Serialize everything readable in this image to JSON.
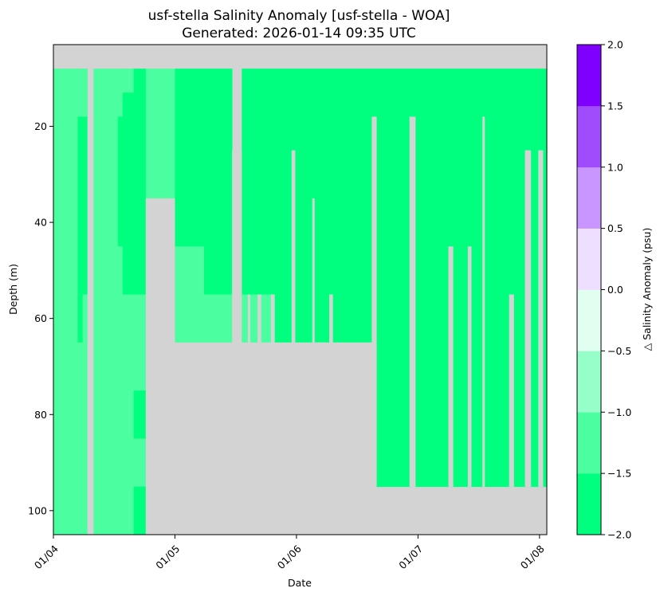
{
  "chart_data": {
    "type": "heatmap",
    "title": "usf-stella Salinity Anomaly [usf-stella - WOA]",
    "subtitle": "Generated: 2026-01-14 09:35 UTC",
    "xlabel": "Date",
    "ylabel": "Depth (m)",
    "colorbar_label": "△ Salinity Anomaly (psu)",
    "x_ticks": [
      "01/04",
      "01/05",
      "01/06",
      "01/07",
      "01/08"
    ],
    "y_ticks": [
      "20",
      "40",
      "60",
      "80",
      "100"
    ],
    "x_range_days": [
      0,
      4.06
    ],
    "y_range_depth_m": [
      3,
      105
    ],
    "y_inverted": true,
    "no_data_color": "#d3d3d3",
    "colorbar": {
      "ticks": [
        "−2.0",
        "−1.5",
        "−1.0",
        "−0.5",
        "0.0",
        "0.5",
        "1.0",
        "1.5",
        "2.0"
      ],
      "levels": [
        -2.0,
        -1.5,
        -1.0,
        -0.5,
        0.0,
        0.5,
        1.0,
        1.5,
        2.0
      ],
      "colors": [
        "#00ff7f",
        "#4bfea0",
        "#96fec8",
        "#e0fff0",
        "#eedfff",
        "#c896fe",
        "#a04bfe",
        "#7f00ff"
      ]
    },
    "cells": [
      {
        "x0": 0,
        "x1": 0.2,
        "d0": 8,
        "d1": 105,
        "v": -1.2
      },
      {
        "x0": 0.2,
        "x1": 0.24,
        "d0": 8,
        "d1": 18,
        "v": -1.2
      },
      {
        "x0": 0.2,
        "x1": 0.24,
        "d0": 18,
        "d1": 65,
        "v": -1.7
      },
      {
        "x0": 0.2,
        "x1": 0.24,
        "d0": 65,
        "d1": 105,
        "v": -1.2
      },
      {
        "x0": 0.24,
        "x1": 0.28,
        "d0": 8,
        "d1": 18,
        "v": -1.2
      },
      {
        "x0": 0.24,
        "x1": 0.28,
        "d0": 18,
        "d1": 55,
        "v": -1.7
      },
      {
        "x0": 0.24,
        "x1": 0.28,
        "d0": 55,
        "d1": 105,
        "v": -1.2
      },
      {
        "x0": 0.33,
        "x1": 0.53,
        "d0": 8,
        "d1": 18,
        "v": -1.2
      },
      {
        "x0": 0.33,
        "x1": 0.53,
        "d0": 18,
        "d1": 105,
        "v": -1.2
      },
      {
        "x0": 0.53,
        "x1": 0.57,
        "d0": 8,
        "d1": 18,
        "v": -1.2
      },
      {
        "x0": 0.53,
        "x1": 0.57,
        "d0": 18,
        "d1": 45,
        "v": -1.7
      },
      {
        "x0": 0.53,
        "x1": 0.57,
        "d0": 45,
        "d1": 105,
        "v": -1.2
      },
      {
        "x0": 0.57,
        "x1": 0.66,
        "d0": 8,
        "d1": 13,
        "v": -1.2
      },
      {
        "x0": 0.57,
        "x1": 0.66,
        "d0": 13,
        "d1": 55,
        "v": -1.7
      },
      {
        "x0": 0.57,
        "x1": 0.66,
        "d0": 55,
        "d1": 105,
        "v": -1.2
      },
      {
        "x0": 0.66,
        "x1": 0.76,
        "d0": 8,
        "d1": 55,
        "v": -1.7
      },
      {
        "x0": 0.66,
        "x1": 0.76,
        "d0": 55,
        "d1": 75,
        "v": -1.2
      },
      {
        "x0": 0.66,
        "x1": 0.76,
        "d0": 75,
        "d1": 85,
        "v": -1.7
      },
      {
        "x0": 0.66,
        "x1": 0.76,
        "d0": 85,
        "d1": 95,
        "v": -1.2
      },
      {
        "x0": 0.66,
        "x1": 0.76,
        "d0": 95,
        "d1": 105,
        "v": -1.7
      },
      {
        "x0": 0.76,
        "x1": 1.0,
        "d0": 8,
        "d1": 35,
        "v": -1.2
      },
      {
        "x0": 1.0,
        "x1": 1.24,
        "d0": 8,
        "d1": 45,
        "v": -1.7
      },
      {
        "x0": 1.0,
        "x1": 1.24,
        "d0": 45,
        "d1": 65,
        "v": -1.2
      },
      {
        "x0": 1.24,
        "x1": 1.47,
        "d0": 8,
        "d1": 55,
        "v": -1.7
      },
      {
        "x0": 1.24,
        "x1": 1.47,
        "d0": 55,
        "d1": 65,
        "v": -1.2
      },
      {
        "x0": 1.55,
        "x1": 2.6,
        "d0": 8,
        "d1": 65,
        "v": -1.7
      },
      {
        "x0": 1.55,
        "x1": 1.82,
        "d0": 55,
        "d1": 65,
        "v": -1.2
      },
      {
        "x0": 2.0,
        "x1": 2.2,
        "d0": 65,
        "d1": 75,
        "v": -1.7
      },
      {
        "x0": 2.4,
        "x1": 2.6,
        "d0": 65,
        "d1": 75,
        "v": -1.7
      },
      {
        "x0": 2.6,
        "x1": 4.06,
        "d0": 8,
        "d1": 65,
        "v": -1.7
      },
      {
        "x0": 2.66,
        "x1": 4.06,
        "d0": 65,
        "d1": 95,
        "v": -1.7
      }
    ],
    "gaps": [
      {
        "x0": 0.28,
        "x1": 0.33,
        "d0": 18,
        "d1": 105
      },
      {
        "x0": 0.76,
        "x1": 1.0,
        "d0": 35,
        "d1": 105
      },
      {
        "x0": 1.0,
        "x1": 2.66,
        "d0": 65,
        "d1": 105
      },
      {
        "x0": 1.47,
        "x1": 1.55,
        "d0": 25,
        "d1": 65
      },
      {
        "x0": 1.79,
        "x1": 1.82,
        "d0": 55,
        "d1": 65
      },
      {
        "x0": 1.68,
        "x1": 1.71,
        "d0": 55,
        "d1": 65
      },
      {
        "x0": 1.6,
        "x1": 1.62,
        "d0": 55,
        "d1": 65
      },
      {
        "x0": 1.96,
        "x1": 1.99,
        "d0": 25,
        "d1": 65
      },
      {
        "x0": 2.13,
        "x1": 2.15,
        "d0": 35,
        "d1": 75
      },
      {
        "x0": 2.15,
        "x1": 2.2,
        "d0": 65,
        "d1": 75
      },
      {
        "x0": 2.27,
        "x1": 2.3,
        "d0": 55,
        "d1": 75
      },
      {
        "x0": 2.33,
        "x1": 2.36,
        "d0": 65,
        "d1": 75
      },
      {
        "x0": 2.2,
        "x1": 2.24,
        "d0": 65,
        "d1": 75
      },
      {
        "x0": 2.59,
        "x1": 2.62,
        "d0": 65,
        "d1": 75
      },
      {
        "x0": 2.62,
        "x1": 2.66,
        "d0": 18,
        "d1": 65
      },
      {
        "x0": 2.93,
        "x1": 2.98,
        "d0": 18,
        "d1": 95
      },
      {
        "x0": 3.25,
        "x1": 3.29,
        "d0": 45,
        "d1": 95
      },
      {
        "x0": 3.41,
        "x1": 3.44,
        "d0": 45,
        "d1": 95
      },
      {
        "x0": 3.53,
        "x1": 3.55,
        "d0": 18,
        "d1": 95
      },
      {
        "x0": 3.75,
        "x1": 3.79,
        "d0": 55,
        "d1": 95
      },
      {
        "x0": 3.88,
        "x1": 3.93,
        "d0": 25,
        "d1": 95
      },
      {
        "x0": 3.99,
        "x1": 4.03,
        "d0": 25,
        "d1": 95
      }
    ]
  }
}
